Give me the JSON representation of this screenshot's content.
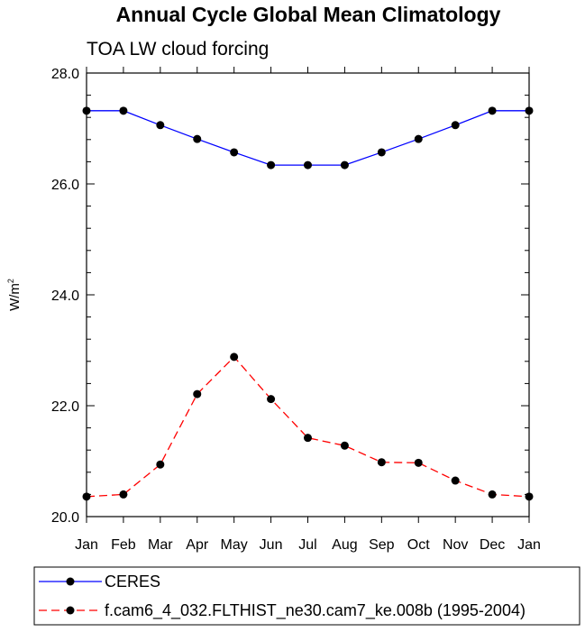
{
  "chart_data": {
    "type": "line",
    "title": "Annual Cycle Global Mean Climatology",
    "subtitle": "TOA LW cloud forcing",
    "xlabel": "",
    "ylabel": "W/m",
    "ylabel_superscript": "2",
    "categories": [
      "Jan",
      "Feb",
      "Mar",
      "Apr",
      "May",
      "Jun",
      "Jul",
      "Aug",
      "Sep",
      "Oct",
      "Nov",
      "Dec",
      "Jan"
    ],
    "ylim": [
      20.0,
      28.0
    ],
    "y_major_ticks": [
      20.0,
      22.0,
      24.0,
      26.0,
      28.0
    ],
    "y_major_tick_labels": [
      "20.0",
      "22.0",
      "24.0",
      "26.0",
      "28.0"
    ],
    "y_minor_step": 0.4,
    "grid": false,
    "legend_position": "bottom",
    "series": [
      {
        "name": "CERES",
        "color": "#0000ff",
        "dash": "solid",
        "values": [
          27.32,
          27.32,
          27.06,
          26.81,
          26.57,
          26.34,
          26.34,
          26.34,
          26.57,
          26.81,
          27.06,
          27.32,
          27.32
        ]
      },
      {
        "name": "f.cam6_4_032.FLTHIST_ne30.cam7_ke.008b (1995-2004)",
        "color": "#ff0000",
        "dash": "dashed",
        "values": [
          20.36,
          20.4,
          20.94,
          22.21,
          22.88,
          22.12,
          21.42,
          21.28,
          20.98,
          20.97,
          20.65,
          20.4,
          20.36
        ]
      }
    ]
  }
}
